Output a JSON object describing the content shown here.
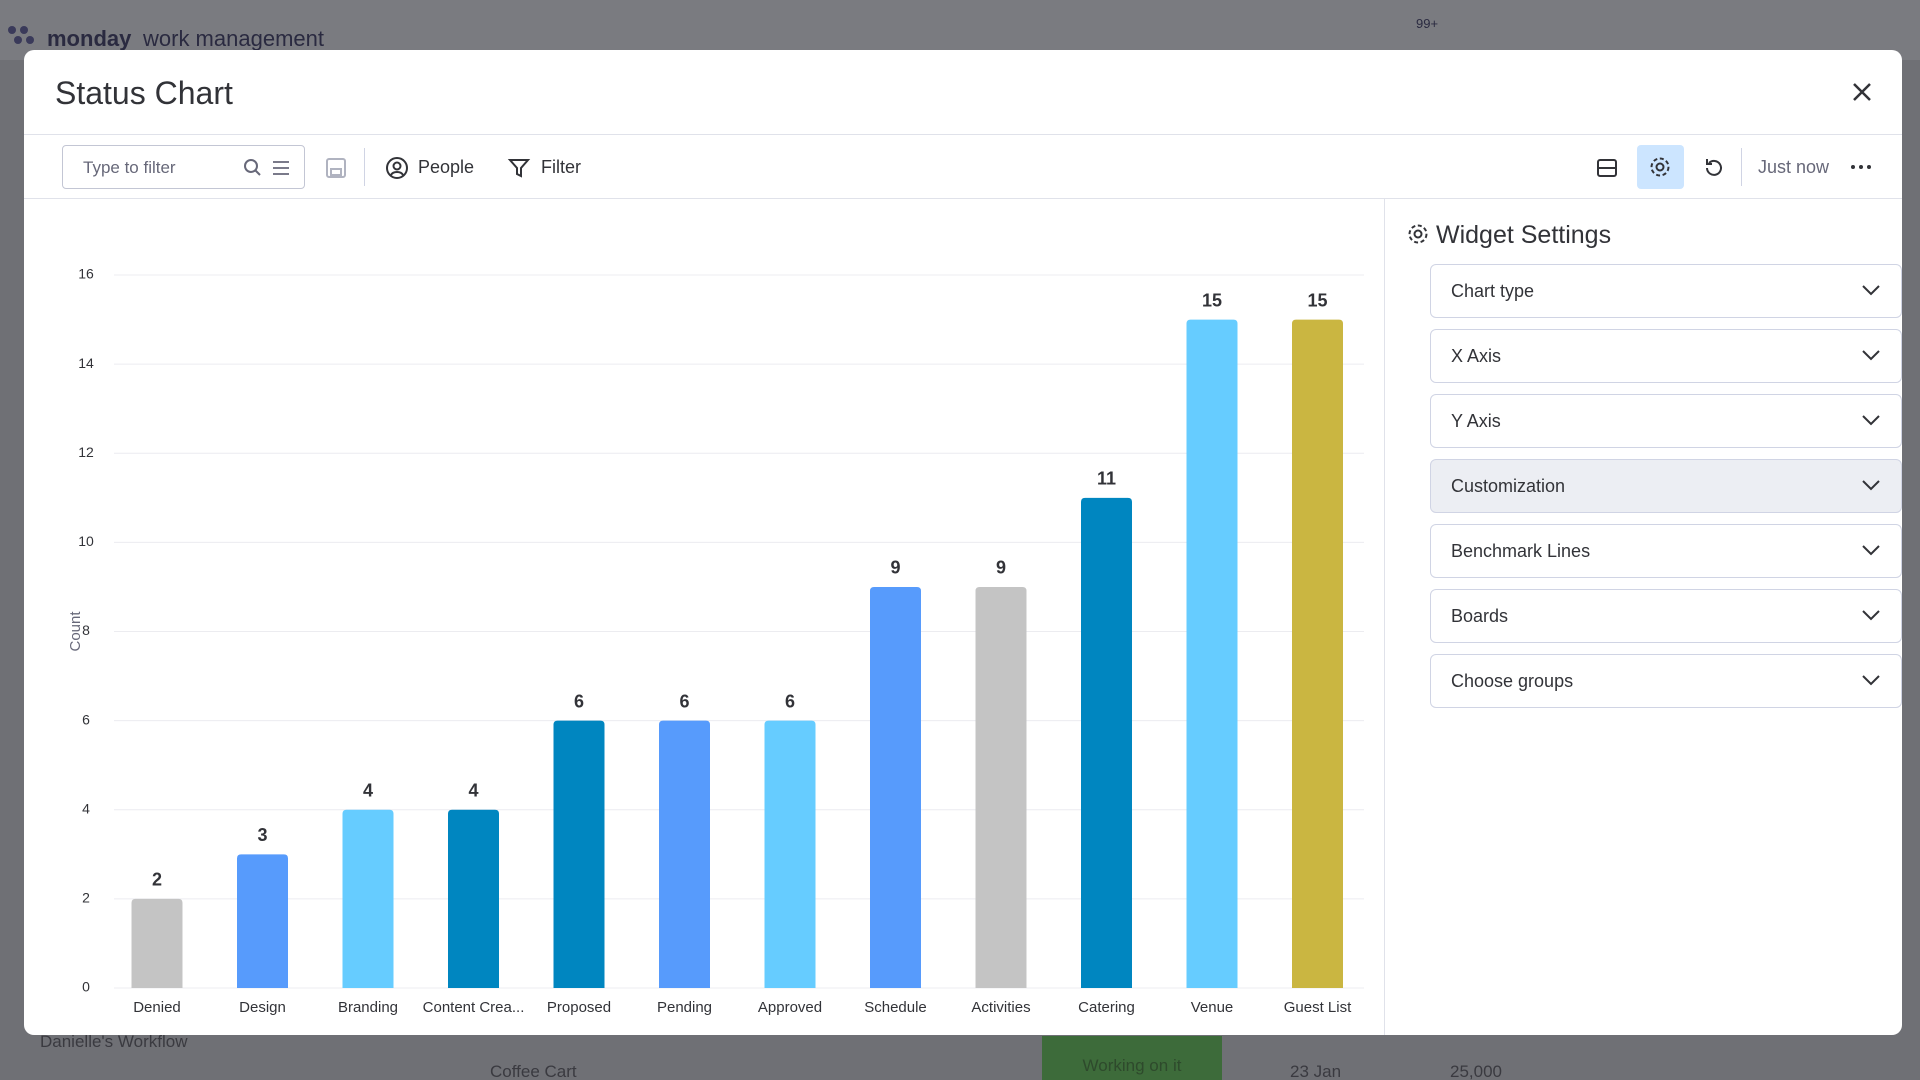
{
  "app": {
    "brand": "monday",
    "product": "work management",
    "badge": "99+"
  },
  "background": {
    "workspace": "Danielle's Workflow",
    "item": "Coffee Cart",
    "status": "Working on it",
    "date": "23 Jan",
    "amount": "25,000"
  },
  "modal": {
    "title": "Status Chart"
  },
  "toolbar": {
    "search_placeholder": "Type to filter",
    "people": "People",
    "filter": "Filter",
    "updated": "Just now"
  },
  "settings": {
    "title": "Widget Settings",
    "items": [
      "Chart type",
      "X Axis",
      "Y Axis",
      "Customization",
      "Benchmark Lines",
      "Boards",
      "Choose groups"
    ]
  },
  "chart_data": {
    "type": "bar",
    "y_label": "Count",
    "categories": [
      "Denied",
      "Design",
      "Branding",
      "Content Crea...",
      "Proposed",
      "Pending",
      "Approved",
      "Schedule",
      "Activities",
      "Catering",
      "Venue",
      "Guest List"
    ],
    "values": [
      2,
      3,
      4,
      4,
      6,
      6,
      6,
      9,
      9,
      11,
      15,
      15
    ],
    "colors": [
      "#c4c4c4",
      "#579bfc",
      "#66ccff",
      "#0086c0",
      "#0086c0",
      "#579bfc",
      "#66ccff",
      "#579bfc",
      "#c4c4c4",
      "#0086c0",
      "#66ccff",
      "#cab641"
    ],
    "ylim": [
      0,
      16
    ],
    "yticks": [
      0,
      2,
      4,
      6,
      8,
      10,
      12,
      14,
      16
    ],
    "grid": true
  }
}
